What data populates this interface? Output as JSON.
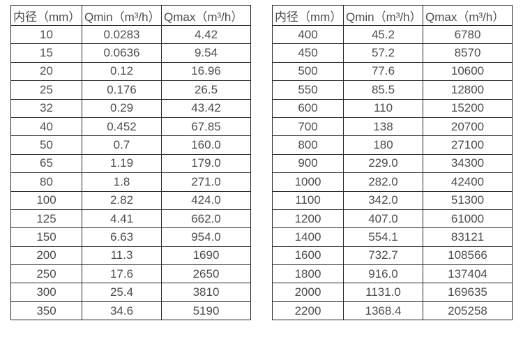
{
  "styles": {
    "background": "#ffffff",
    "text_color": "#4d4d4d",
    "border_color": "#262626"
  },
  "chart_data": [
    {
      "type": "table",
      "title": "",
      "columns": [
        "内径（mm）",
        "Qmin（m³/h）",
        "Qmax（m³/h）"
      ],
      "rows": [
        [
          "10",
          "0.0283",
          "4.42"
        ],
        [
          "15",
          "0.0636",
          "9.54"
        ],
        [
          "20",
          "0.12",
          "16.96"
        ],
        [
          "25",
          "0.176",
          "26.5"
        ],
        [
          "32",
          "0.29",
          "43.42"
        ],
        [
          "40",
          "0.452",
          "67.85"
        ],
        [
          "50",
          "0.7",
          "160.0"
        ],
        [
          "65",
          "1.19",
          "179.0"
        ],
        [
          "80",
          "1.8",
          "271.0"
        ],
        [
          "100",
          "2.82",
          "424.0"
        ],
        [
          "125",
          "4.41",
          "662.0"
        ],
        [
          "150",
          "6.63",
          "954.0"
        ],
        [
          "200",
          "11.3",
          "1690"
        ],
        [
          "250",
          "17.6",
          "2650"
        ],
        [
          "300",
          "25.4",
          "3810"
        ],
        [
          "350",
          "34.6",
          "5190"
        ]
      ]
    },
    {
      "type": "table",
      "title": "",
      "columns": [
        "内径（mm）",
        "Qmin（m³/h）",
        "Qmax（m³/h）"
      ],
      "rows": [
        [
          "400",
          "45.2",
          "6780"
        ],
        [
          "450",
          "57.2",
          "8570"
        ],
        [
          "500",
          "77.6",
          "10600"
        ],
        [
          "550",
          "85.5",
          "12800"
        ],
        [
          "600",
          "110",
          "15200"
        ],
        [
          "700",
          "138",
          "20700"
        ],
        [
          "800",
          "180",
          "27100"
        ],
        [
          "900",
          "229.0",
          "34300"
        ],
        [
          "1000",
          "282.0",
          "42400"
        ],
        [
          "1100",
          "342.0",
          "51300"
        ],
        [
          "1200",
          "407.0",
          "61000"
        ],
        [
          "1400",
          "554.1",
          "83121"
        ],
        [
          "1600",
          "732.7",
          "108566"
        ],
        [
          "1800",
          "916.0",
          "137404"
        ],
        [
          "2000",
          "1131.0",
          "169635"
        ],
        [
          "2200",
          "1368.4",
          "205258"
        ]
      ]
    }
  ]
}
